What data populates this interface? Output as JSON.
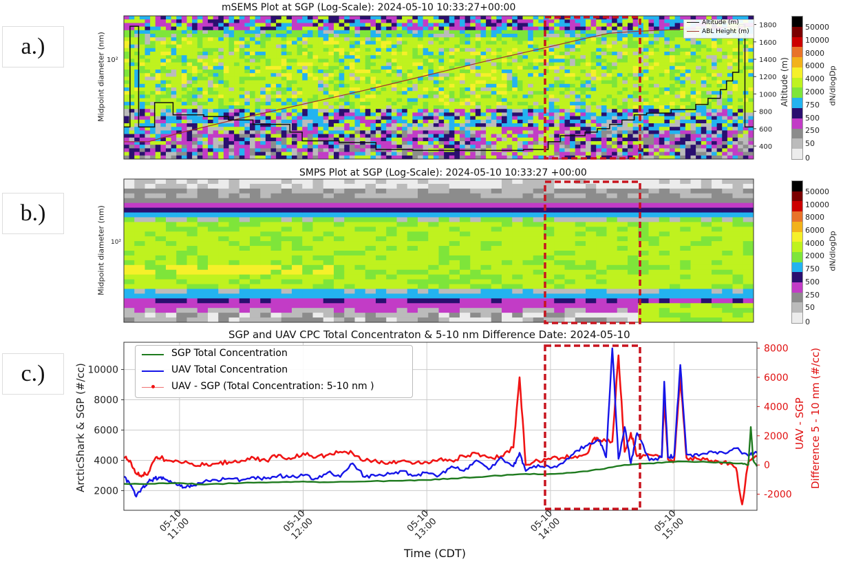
{
  "panel_labels": {
    "a": "a.)",
    "b": "b.)",
    "c": "c.)"
  },
  "colorbar": {
    "label": "dN/dlogDp",
    "ticks": [
      "50000",
      "10000",
      "8000",
      "6000",
      "4000",
      "2000",
      "750",
      "500",
      "250",
      "50",
      "0"
    ],
    "colors": [
      "#000000",
      "#7a0000",
      "#cc0000",
      "#e8732a",
      "#f2b21b",
      "#f5f02a",
      "#bff21f",
      "#7ee53a",
      "#23b3f0",
      "#2a0f6f",
      "#c23cc6",
      "#8c8c8c",
      "#bbbbbb",
      "#ececec"
    ]
  },
  "chart_data": [
    {
      "type": "heatmap",
      "title": "mSEMS Plot at SGP (Log-Scale): 2024-05-10 10:33:27+00:00",
      "ylabel": "Midpoint diameter (nm)",
      "y_tick": "10²",
      "y2label": "Altitude (m)",
      "y2_ticks": [
        400,
        600,
        800,
        1000,
        1200,
        1400,
        1600,
        1800
      ],
      "y2lim": [
        250,
        1900
      ],
      "legend": [
        "Altitude (m)",
        "ABL Height (m)"
      ],
      "series": [
        {
          "name": "Altitude (m)",
          "t": [
            10.55,
            10.6,
            10.67,
            10.74,
            10.8,
            10.9,
            10.95,
            11.0,
            11.2,
            11.4,
            11.6,
            11.9,
            12.0,
            12.3,
            12.6,
            12.9,
            13.2,
            13.5,
            13.8,
            14.0,
            14.1,
            14.2,
            14.3,
            14.4,
            14.5,
            14.6,
            14.7,
            14.8,
            14.9,
            15.0,
            15.1,
            15.2,
            15.3,
            15.4,
            15.45,
            15.5,
            15.55,
            15.6,
            15.67
          ],
          "values": [
            620,
            1780,
            620,
            620,
            900,
            900,
            760,
            760,
            740,
            700,
            650,
            560,
            460,
            440,
            360,
            350,
            350,
            350,
            360,
            450,
            520,
            520,
            560,
            600,
            650,
            700,
            760,
            780,
            780,
            820,
            820,
            880,
            950,
            1050,
            1150,
            1250,
            1800,
            620,
            620
          ]
        },
        {
          "name": "ABL Height (m)",
          "t": [
            10.55,
            10.75,
            11.0,
            11.5,
            12.0,
            12.5,
            13.0,
            13.5,
            14.0,
            14.3,
            14.5,
            14.7,
            15.0,
            15.3,
            15.67
          ],
          "values": [
            450,
            450,
            550,
            720,
            880,
            1040,
            1210,
            1380,
            1540,
            1640,
            1700,
            1720,
            1740,
            1760,
            1780
          ]
        }
      ]
    },
    {
      "type": "heatmap",
      "title": "SMPS Plot at SGP (Log-Scale): 2024-05-10 10:33:27 +00:00",
      "ylabel": "Midpoint diameter (nm)",
      "y_tick": "10²"
    },
    {
      "type": "line",
      "title": "SGP and UAV CPC Total Concentraton & 5-10 nm Difference Date: 2024-05-10",
      "xlabel": "Time (CDT)",
      "ylabel": "ArcticShark & SGP (#/cc)",
      "y2label_line1": "UAV - SGP",
      "y2label_line2": "Difference 5 - 10 nm (#/cc)",
      "xlim": [
        10.55,
        15.67
      ],
      "ylim": [
        700,
        11800
      ],
      "y2lim": [
        -3100,
        8400
      ],
      "x_ticks": [
        {
          "t": 11,
          "line1": "05-10",
          "line2": "11:00"
        },
        {
          "t": 12,
          "line1": "05-10",
          "line2": "12:00"
        },
        {
          "t": 13,
          "line1": "05-10",
          "line2": "13:00"
        },
        {
          "t": 14,
          "line1": "05-10",
          "line2": "14:00"
        },
        {
          "t": 15,
          "line1": "05-10",
          "line2": "15:00"
        }
      ],
      "y_ticks": [
        2000,
        4000,
        6000,
        8000,
        10000
      ],
      "y2_ticks": [
        -2000,
        0,
        2000,
        4000,
        6000,
        8000
      ],
      "series": [
        {
          "name": "SGP Total Concentration",
          "color": "#1e7a1e",
          "t": [
            10.55,
            10.8,
            11.0,
            11.2,
            11.5,
            11.8,
            12.0,
            12.2,
            12.5,
            12.8,
            13.0,
            13.2,
            13.5,
            13.8,
            14.0,
            14.2,
            14.4,
            14.6,
            14.8,
            15.0,
            15.2,
            15.4,
            15.55,
            15.6,
            15.62,
            15.64,
            15.67
          ],
          "values": [
            2450,
            2450,
            2500,
            2400,
            2500,
            2550,
            2600,
            2550,
            2600,
            2650,
            2700,
            2800,
            2950,
            3100,
            3100,
            3200,
            3400,
            3700,
            3800,
            3900,
            3900,
            3850,
            3800,
            3700,
            6200,
            4000,
            3600
          ]
        },
        {
          "name": "UAV Total Concentration",
          "color": "#1515e8",
          "t": [
            10.55,
            10.6,
            10.65,
            10.7,
            10.75,
            10.8,
            10.85,
            10.9,
            10.95,
            11.0,
            11.05,
            11.1,
            11.2,
            11.3,
            11.4,
            11.5,
            11.6,
            11.7,
            11.8,
            11.9,
            12.0,
            12.1,
            12.2,
            12.3,
            12.4,
            12.5,
            12.6,
            12.7,
            12.8,
            12.9,
            13.0,
            13.1,
            13.2,
            13.3,
            13.4,
            13.5,
            13.6,
            13.7,
            13.75,
            13.8,
            13.9,
            14.0,
            14.1,
            14.2,
            14.3,
            14.4,
            14.45,
            14.5,
            14.55,
            14.6,
            14.65,
            14.7,
            14.8,
            14.9,
            14.92,
            14.95,
            15.0,
            15.05,
            15.1,
            15.2,
            15.3,
            15.4,
            15.5,
            15.6,
            15.67
          ],
          "values": [
            2900,
            2400,
            1600,
            2200,
            2600,
            2800,
            2900,
            2700,
            2500,
            2400,
            2200,
            2300,
            2600,
            2700,
            2800,
            2700,
            2900,
            2800,
            3000,
            2900,
            3000,
            2800,
            3200,
            2900,
            3800,
            2900,
            3000,
            3100,
            3300,
            3000,
            3200,
            3000,
            3600,
            3300,
            4000,
            3400,
            4200,
            3600,
            4500,
            3300,
            3700,
            3500,
            3800,
            4600,
            5000,
            5300,
            4200,
            11400,
            4100,
            6200,
            3800,
            5800,
            4000,
            4200,
            9200,
            4200,
            4300,
            10300,
            4400,
            4300,
            4600,
            4500,
            4800,
            4300,
            4500
          ]
        },
        {
          "name": "UAV - SGP (Total Concentration: 5-10 nm )",
          "color": "#f01414",
          "axis": "right",
          "t": [
            10.55,
            10.6,
            10.65,
            10.7,
            10.75,
            10.8,
            10.85,
            10.9,
            11.0,
            11.1,
            11.2,
            11.3,
            11.4,
            11.5,
            11.6,
            11.7,
            11.8,
            11.9,
            12.0,
            12.1,
            12.2,
            12.3,
            12.4,
            12.5,
            12.6,
            12.7,
            12.8,
            12.9,
            13.0,
            13.1,
            13.2,
            13.3,
            13.4,
            13.5,
            13.6,
            13.7,
            13.75,
            13.8,
            13.9,
            14.0,
            14.1,
            14.2,
            14.3,
            14.35,
            14.4,
            14.5,
            14.55,
            14.6,
            14.65,
            14.7,
            14.8,
            14.9,
            14.92,
            14.95,
            15.0,
            15.05,
            15.1,
            15.2,
            15.3,
            15.4,
            15.5,
            15.55,
            15.6,
            15.67
          ],
          "values": [
            500,
            300,
            -600,
            -700,
            -500,
            400,
            500,
            300,
            200,
            100,
            0,
            100,
            200,
            300,
            500,
            300,
            700,
            400,
            800,
            500,
            700,
            900,
            800,
            300,
            200,
            200,
            300,
            100,
            200,
            400,
            300,
            600,
            800,
            500,
            600,
            1200,
            6000,
            0,
            300,
            400,
            500,
            600,
            800,
            1800,
            1700,
            1600,
            7500,
            900,
            2200,
            600,
            700,
            600,
            4500,
            400,
            300,
            6000,
            500,
            400,
            300,
            200,
            -200,
            -2700,
            200,
            600
          ]
        }
      ]
    }
  ]
}
